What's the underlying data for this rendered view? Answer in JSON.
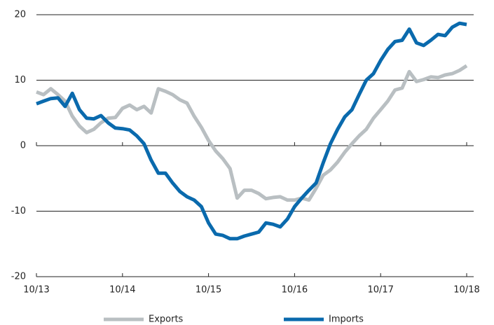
{
  "chart_data": {
    "type": "line",
    "categories": [
      "10/13",
      null,
      null,
      null,
      null,
      null,
      null,
      null,
      null,
      null,
      null,
      null,
      "10/14",
      null,
      null,
      null,
      null,
      null,
      null,
      null,
      null,
      null,
      null,
      null,
      "10/15",
      null,
      null,
      null,
      null,
      null,
      null,
      null,
      null,
      null,
      null,
      null,
      "10/16",
      null,
      null,
      null,
      null,
      null,
      null,
      null,
      null,
      null,
      null,
      null,
      "10/17",
      null,
      null,
      null,
      null,
      null,
      null,
      null,
      null,
      null,
      null,
      null,
      "10/18"
    ],
    "series": [
      {
        "name": "Exports",
        "color": "#b9bfc2",
        "values": [
          8.2,
          7.8,
          8.7,
          7.8,
          6.8,
          4.5,
          3,
          2,
          2.5,
          3.5,
          4.2,
          4.3,
          5.7,
          6.2,
          5.5,
          6,
          5,
          8.7,
          8.3,
          7.8,
          7,
          6.5,
          4.5,
          2.8,
          0.8,
          -0.8,
          -2,
          -3.5,
          -8,
          -6.8,
          -6.8,
          -7.3,
          -8.1,
          -7.9,
          -7.8,
          -8.3,
          -8.3,
          -8,
          -8.3,
          -6.5,
          -4.5,
          -3.7,
          -2.5,
          -1,
          0.3,
          1.5,
          2.5,
          4.2,
          5.5,
          6.8,
          8.5,
          8.8,
          11.3,
          9.8,
          10.1,
          10.5,
          10.4,
          10.8,
          11,
          11.5,
          12.2
        ]
      },
      {
        "name": "Imports",
        "color": "#0a6aad",
        "values": [
          6.4,
          6.8,
          7.2,
          7.3,
          6,
          8,
          5.5,
          4.2,
          4.1,
          4.6,
          3.5,
          2.7,
          2.6,
          2.4,
          1.5,
          0.3,
          -2.2,
          -4.2,
          -4.2,
          -5.7,
          -7,
          -7.8,
          -8.3,
          -9.3,
          -11.8,
          -13.5,
          -13.7,
          -14.2,
          -14.2,
          -13.8,
          -13.5,
          -13.2,
          -11.8,
          -12,
          -12.4,
          -11.2,
          -9.3,
          -8,
          -6.8,
          -5.7,
          -2.6,
          0.3,
          2.5,
          4.4,
          5.5,
          7.8,
          10,
          11,
          13,
          14.7,
          15.9,
          16.1,
          17.8,
          15.7,
          15.3,
          16.1,
          17,
          16.8,
          18.1,
          18.7,
          18.5
        ]
      }
    ],
    "ylim": [
      -20,
      20
    ],
    "yticks": [
      -20,
      -10,
      0,
      10,
      20
    ],
    "grid": true,
    "legend": "bottom"
  }
}
